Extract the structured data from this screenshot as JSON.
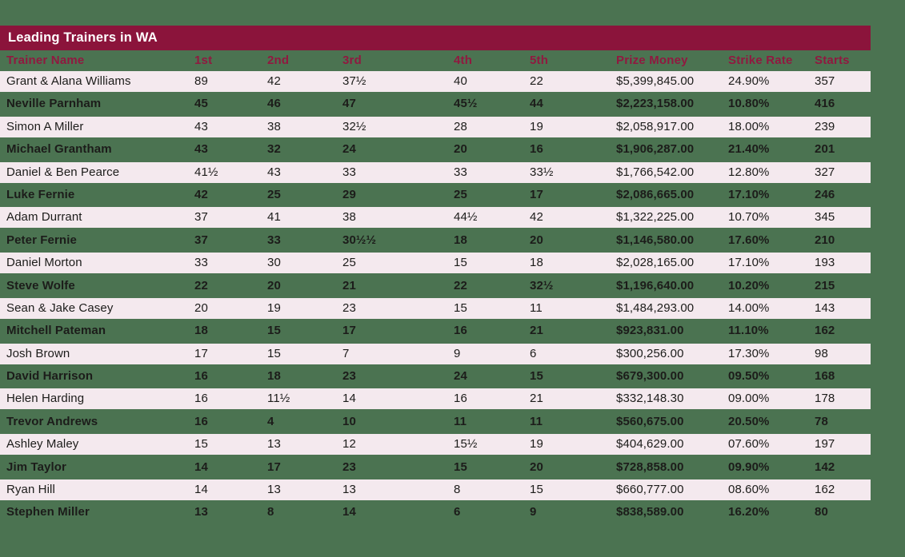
{
  "title_bar": {
    "label": "Leading Trainers in WA"
  },
  "chart_data": {
    "type": "table",
    "title": "Leading Trainers in WA",
    "columns": [
      "Trainer Name",
      "1st",
      "2nd",
      "3rd",
      "4th",
      "5th",
      "Prize Money",
      "Strike Rate",
      "Starts"
    ],
    "column_keys": [
      "trainer-name",
      "1st",
      "2nd",
      "3rd",
      "4th",
      "5th",
      "prize-money",
      "strike-rate",
      "starts"
    ],
    "rows": [
      [
        "Grant & Alana Williams",
        "89",
        "42",
        "37½",
        "40",
        "22",
        "$5,399,845.00",
        "24.90%",
        "357"
      ],
      [
        "Neville Parnham",
        "45",
        "46",
        "47",
        "45½",
        "44",
        "$2,223,158.00",
        "10.80%",
        "416"
      ],
      [
        "Simon A Miller",
        "43",
        "38",
        "32½",
        "28",
        "19",
        "$2,058,917.00",
        "18.00%",
        "239"
      ],
      [
        "Michael Grantham",
        "43",
        "32",
        "24",
        "20",
        "16",
        "$1,906,287.00",
        "21.40%",
        "201"
      ],
      [
        "Daniel & Ben Pearce",
        "41½",
        "43",
        "33",
        "33",
        "33½",
        "$1,766,542.00",
        "12.80%",
        "327"
      ],
      [
        "Luke Fernie",
        "42",
        "25",
        "29",
        "25",
        "17",
        "$2,086,665.00",
        "17.10%",
        "246"
      ],
      [
        "Adam Durrant",
        "37",
        "41",
        "38",
        "44½",
        "42",
        "$1,322,225.00",
        "10.70%",
        "345"
      ],
      [
        "Peter Fernie",
        "37",
        "33",
        "30½½",
        "18",
        "20",
        "$1,146,580.00",
        "17.60%",
        "210"
      ],
      [
        "Daniel Morton",
        "33",
        "30",
        "25",
        "15",
        "18",
        "$2,028,165.00",
        "17.10%",
        "193"
      ],
      [
        "Steve Wolfe",
        "22",
        "20",
        "21",
        "22",
        "32½",
        "$1,196,640.00",
        "10.20%",
        "215"
      ],
      [
        "Sean & Jake Casey",
        "20",
        "19",
        "23",
        "15",
        "11",
        "$1,484,293.00",
        "14.00%",
        "143"
      ],
      [
        "Mitchell Pateman",
        "18",
        "15",
        "17",
        "16",
        "21",
        "$923,831.00",
        "11.10%",
        "162"
      ],
      [
        "Josh Brown",
        "17",
        "15",
        "7",
        "9",
        "6",
        "$300,256.00",
        "17.30%",
        "98"
      ],
      [
        "David Harrison",
        "16",
        "18",
        "23",
        "24",
        "15",
        "$679,300.00",
        "09.50%",
        "168"
      ],
      [
        "Helen Harding",
        "16",
        "11½",
        "14",
        "16",
        "21",
        "$332,148.30",
        "09.00%",
        "178"
      ],
      [
        "Trevor Andrews",
        "16",
        "4",
        "10",
        "11",
        "11",
        "$560,675.00",
        "20.50%",
        "78"
      ],
      [
        "Ashley Maley",
        "15",
        "13",
        "12",
        "15½",
        "19",
        "$404,629.00",
        "07.60%",
        "197"
      ],
      [
        "Jim Taylor",
        "14",
        "17",
        "23",
        "15",
        "20",
        "$728,858.00",
        "09.90%",
        "142"
      ],
      [
        "Ryan Hill",
        "14",
        "13",
        "13",
        "8",
        "15",
        "$660,777.00",
        "08.60%",
        "162"
      ],
      [
        "Stephen Miller",
        "13",
        "8",
        "14",
        "6",
        "9",
        "$838,589.00",
        "16.20%",
        "80"
      ]
    ]
  },
  "colors": {
    "page_background": "#4b7351",
    "title_bar_background": "#8b143b",
    "title_text": "#ffffff",
    "header_text": "#901940",
    "alt_row_background": "#f4e9ee",
    "row_text": "#1c1c1a"
  }
}
